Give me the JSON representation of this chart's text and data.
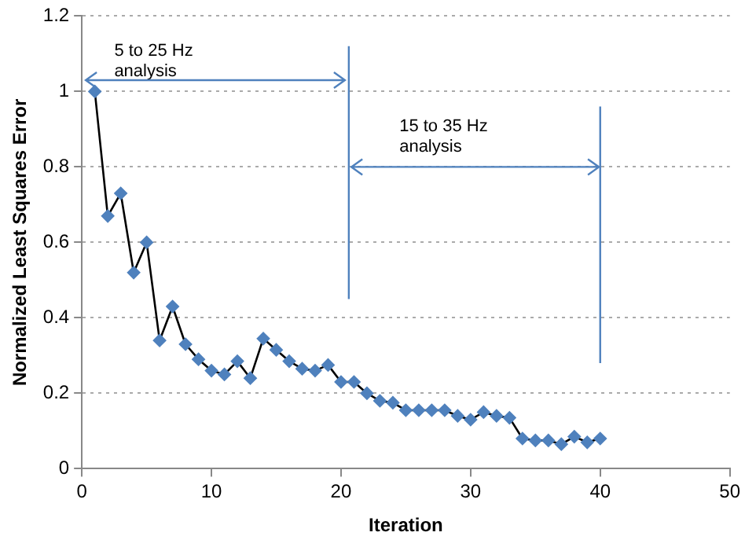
{
  "chart_data": {
    "type": "line",
    "xlabel": "Iteration",
    "ylabel": "Normalized Least Squares Error",
    "x": [
      1,
      2,
      3,
      4,
      5,
      6,
      7,
      8,
      9,
      10,
      11,
      12,
      13,
      14,
      15,
      16,
      17,
      18,
      19,
      20,
      21,
      22,
      23,
      24,
      25,
      26,
      27,
      28,
      29,
      30,
      31,
      32,
      33,
      34,
      35,
      36,
      37,
      38,
      39,
      40
    ],
    "series": [
      {
        "color": "#4f81bd",
        "values": [
          1.0,
          0.67,
          0.73,
          0.52,
          0.6,
          0.34,
          0.43,
          0.33,
          0.29,
          0.26,
          0.25,
          0.285,
          0.24,
          0.345,
          0.315,
          0.285,
          0.265,
          0.26,
          0.275,
          0.23,
          0.23,
          0.2,
          0.18,
          0.175,
          0.155,
          0.155,
          0.155,
          0.155,
          0.14,
          0.13,
          0.15,
          0.14,
          0.135,
          0.08,
          0.075,
          0.075,
          0.065,
          0.085,
          0.07,
          0.08
        ]
      }
    ],
    "xlim": [
      0,
      50
    ],
    "xticks": [
      0,
      10,
      20,
      30,
      40,
      50
    ],
    "ylim": [
      0,
      1.2
    ],
    "yticks": [
      0,
      0.2,
      0.4,
      0.6,
      0.8,
      1,
      1.2
    ],
    "grid": "y",
    "legend": false,
    "marker": "diamond",
    "line_style": "solid",
    "annotations": [
      "5 to 25 Hz\nanalysis",
      "15 to 35 Hz\nanalysis"
    ]
  }
}
